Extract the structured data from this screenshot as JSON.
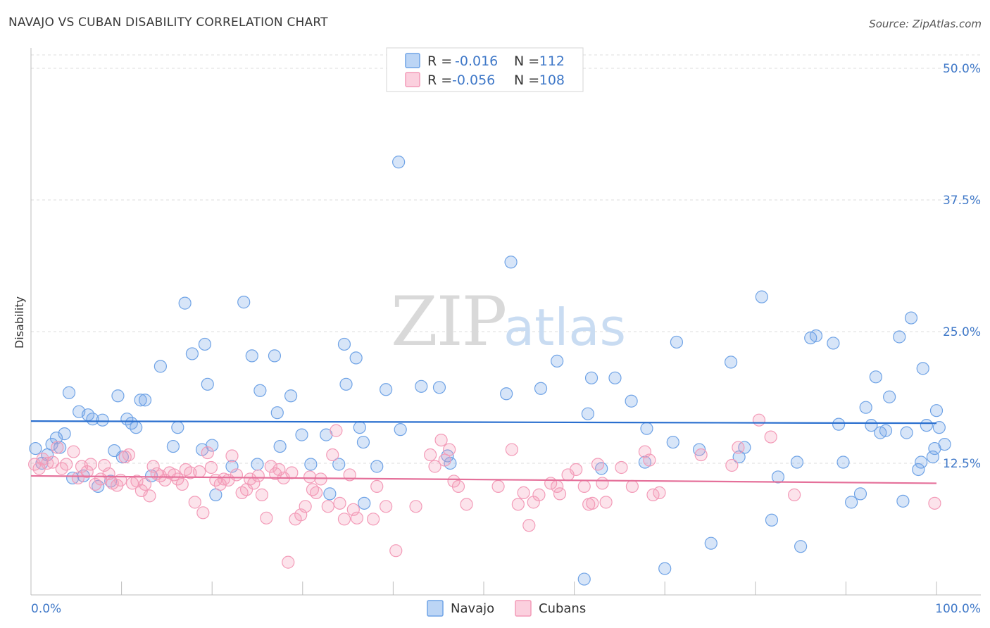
{
  "header": {
    "title": "NAVAJO VS CUBAN DISABILITY CORRELATION CHART",
    "source": "Source: ZipAtlas.com"
  },
  "watermark": {
    "part1": "ZIP",
    "part2": "atlas"
  },
  "legend": {
    "rows": [
      {
        "r_label": "R =",
        "r_value": "-0.016",
        "n_label": "N =",
        "n_value": "112",
        "color": "#6fa3e6"
      },
      {
        "r_label": "R =",
        "r_value": "-0.056",
        "n_label": "N =",
        "n_value": "108",
        "color": "#f39bb8"
      }
    ]
  },
  "bottom_legend": [
    {
      "label": "Navajo",
      "color": "#6fa3e6"
    },
    {
      "label": "Cubans",
      "color": "#f39bb8"
    }
  ],
  "chart_data": {
    "type": "scatter",
    "title": "NAVAJO VS CUBAN DISABILITY CORRELATION CHART",
    "ylabel": "Disability",
    "xlabel": "",
    "xlim": [
      0,
      100
    ],
    "ylim": [
      0,
      50
    ],
    "x_tick_labels": [
      "0.0%",
      "100.0%"
    ],
    "y_ticks": [
      12.5,
      25.0,
      37.5,
      50.0
    ],
    "y_tick_labels": [
      "12.5%",
      "25.0%",
      "37.5%",
      "50.0%"
    ],
    "grid": "horizontal dashed",
    "legend_position": "top-center",
    "series": [
      {
        "name": "Navajo",
        "color": "#6fa3e6",
        "line_color": "#2a6fcf",
        "trend": [
          [
            0,
            16.5
          ],
          [
            100,
            16.3
          ]
        ],
        "points": [
          [
            0.5,
            13.9
          ],
          [
            1.2,
            12.5
          ],
          [
            1.8,
            13.3
          ],
          [
            2.3,
            14.3
          ],
          [
            2.8,
            14.9
          ],
          [
            3.2,
            14.0
          ],
          [
            3.7,
            15.3
          ],
          [
            4.2,
            19.2
          ],
          [
            4.6,
            11.1
          ],
          [
            5.3,
            17.4
          ],
          [
            5.8,
            11.3
          ],
          [
            6.3,
            17.1
          ],
          [
            6.8,
            16.7
          ],
          [
            7.4,
            10.3
          ],
          [
            7.9,
            16.6
          ],
          [
            8.8,
            10.8
          ],
          [
            9.2,
            13.7
          ],
          [
            9.6,
            18.9
          ],
          [
            10.1,
            13.1
          ],
          [
            10.6,
            16.7
          ],
          [
            11.1,
            16.3
          ],
          [
            11.6,
            15.9
          ],
          [
            12.1,
            18.5
          ],
          [
            12.6,
            18.5
          ],
          [
            13.3,
            11.3
          ],
          [
            14.3,
            21.7
          ],
          [
            15.7,
            14.1
          ],
          [
            16.2,
            15.9
          ],
          [
            17.0,
            27.7
          ],
          [
            17.8,
            22.9
          ],
          [
            18.9,
            13.8
          ],
          [
            19.2,
            23.8
          ],
          [
            19.5,
            20.0
          ],
          [
            20.0,
            14.2
          ],
          [
            20.4,
            9.5
          ],
          [
            22.2,
            12.2
          ],
          [
            23.5,
            27.8
          ],
          [
            24.4,
            22.7
          ],
          [
            25.0,
            12.4
          ],
          [
            25.3,
            19.4
          ],
          [
            26.9,
            22.7
          ],
          [
            27.2,
            17.3
          ],
          [
            27.5,
            14.1
          ],
          [
            28.7,
            18.9
          ],
          [
            29.9,
            15.2
          ],
          [
            30.9,
            12.4
          ],
          [
            32.6,
            15.2
          ],
          [
            33.0,
            9.6
          ],
          [
            34.0,
            12.4
          ],
          [
            34.6,
            23.8
          ],
          [
            34.8,
            20.0
          ],
          [
            35.9,
            22.5
          ],
          [
            36.3,
            15.9
          ],
          [
            36.7,
            14.5
          ],
          [
            36.8,
            8.7
          ],
          [
            38.2,
            12.2
          ],
          [
            39.2,
            19.5
          ],
          [
            40.6,
            41.1
          ],
          [
            40.8,
            15.7
          ],
          [
            43.1,
            19.8
          ],
          [
            45.1,
            19.7
          ],
          [
            46.0,
            13.2
          ],
          [
            46.3,
            12.5
          ],
          [
            52.5,
            19.1
          ],
          [
            53.0,
            31.6
          ],
          [
            56.3,
            19.6
          ],
          [
            58.1,
            22.2
          ],
          [
            61.1,
            1.5
          ],
          [
            61.5,
            17.2
          ],
          [
            61.9,
            20.6
          ],
          [
            63.0,
            12.0
          ],
          [
            64.5,
            20.6
          ],
          [
            66.3,
            18.4
          ],
          [
            67.8,
            12.6
          ],
          [
            68.0,
            15.8
          ],
          [
            70.0,
            2.5
          ],
          [
            70.9,
            14.5
          ],
          [
            71.3,
            24.0
          ],
          [
            73.8,
            13.8
          ],
          [
            75.1,
            4.9
          ],
          [
            77.3,
            22.1
          ],
          [
            78.2,
            13.1
          ],
          [
            78.8,
            14.0
          ],
          [
            80.7,
            28.3
          ],
          [
            81.8,
            7.1
          ],
          [
            82.5,
            11.2
          ],
          [
            84.6,
            12.6
          ],
          [
            85.0,
            4.6
          ],
          [
            86.1,
            24.4
          ],
          [
            86.7,
            24.6
          ],
          [
            88.6,
            23.9
          ],
          [
            89.2,
            16.2
          ],
          [
            89.7,
            12.6
          ],
          [
            90.6,
            8.8
          ],
          [
            91.6,
            9.6
          ],
          [
            92.2,
            17.8
          ],
          [
            92.8,
            16.1
          ],
          [
            93.3,
            20.7
          ],
          [
            93.8,
            15.4
          ],
          [
            94.4,
            15.6
          ],
          [
            94.8,
            18.8
          ],
          [
            95.9,
            24.5
          ],
          [
            96.3,
            8.9
          ],
          [
            96.7,
            15.4
          ],
          [
            97.2,
            26.3
          ],
          [
            98.0,
            11.9
          ],
          [
            98.3,
            12.6
          ],
          [
            98.5,
            21.5
          ],
          [
            98.9,
            16.1
          ],
          [
            99.6,
            13.1
          ],
          [
            99.8,
            13.9
          ],
          [
            100.0,
            17.5
          ],
          [
            100.3,
            15.9
          ],
          [
            100.9,
            14.3
          ]
        ]
      },
      {
        "name": "Cubans",
        "color": "#f39bb8",
        "line_color": "#e5709a",
        "trend": [
          [
            0,
            11.3
          ],
          [
            100,
            10.6
          ]
        ],
        "points": [
          [
            0.4,
            12.4
          ],
          [
            0.9,
            12.0
          ],
          [
            1.3,
            12.9
          ],
          [
            1.8,
            12.5
          ],
          [
            2.4,
            12.6
          ],
          [
            2.9,
            14.0
          ],
          [
            3.4,
            12.0
          ],
          [
            3.9,
            12.4
          ],
          [
            4.7,
            13.6
          ],
          [
            5.2,
            11.1
          ],
          [
            5.6,
            12.2
          ],
          [
            6.2,
            11.7
          ],
          [
            6.6,
            12.4
          ],
          [
            7.1,
            10.5
          ],
          [
            7.7,
            11.0
          ],
          [
            8.1,
            12.3
          ],
          [
            8.6,
            11.5
          ],
          [
            9.0,
            10.6
          ],
          [
            9.5,
            10.4
          ],
          [
            9.9,
            10.9
          ],
          [
            10.4,
            13.1
          ],
          [
            10.8,
            13.3
          ],
          [
            11.2,
            10.6
          ],
          [
            11.7,
            10.8
          ],
          [
            12.2,
            9.9
          ],
          [
            12.6,
            10.5
          ],
          [
            13.1,
            9.4
          ],
          [
            13.5,
            12.2
          ],
          [
            13.9,
            11.5
          ],
          [
            14.3,
            11.3
          ],
          [
            14.8,
            10.9
          ],
          [
            15.3,
            11.6
          ],
          [
            15.8,
            11.4
          ],
          [
            16.2,
            11.0
          ],
          [
            16.7,
            10.5
          ],
          [
            17.1,
            11.9
          ],
          [
            17.6,
            11.6
          ],
          [
            18.1,
            8.8
          ],
          [
            18.6,
            11.7
          ],
          [
            19.0,
            7.8
          ],
          [
            19.5,
            13.5
          ],
          [
            19.9,
            12.1
          ],
          [
            20.4,
            10.9
          ],
          [
            20.9,
            10.5
          ],
          [
            21.3,
            11.0
          ],
          [
            21.8,
            10.9
          ],
          [
            22.2,
            13.2
          ],
          [
            22.7,
            11.4
          ],
          [
            23.3,
            9.7
          ],
          [
            23.8,
            10.0
          ],
          [
            24.2,
            11.0
          ],
          [
            24.6,
            10.6
          ],
          [
            25.1,
            11.3
          ],
          [
            25.5,
            9.5
          ],
          [
            26.0,
            7.3
          ],
          [
            26.5,
            12.2
          ],
          [
            27.0,
            11.5
          ],
          [
            27.4,
            11.9
          ],
          [
            27.9,
            11.1
          ],
          [
            28.4,
            3.1
          ],
          [
            28.8,
            11.6
          ],
          [
            29.2,
            7.2
          ],
          [
            29.8,
            7.6
          ],
          [
            30.3,
            8.4
          ],
          [
            30.8,
            11.2
          ],
          [
            31.1,
            10.0
          ],
          [
            31.5,
            9.7
          ],
          [
            32.0,
            11.0
          ],
          [
            32.8,
            8.4
          ],
          [
            33.3,
            13.3
          ],
          [
            33.7,
            15.6
          ],
          [
            34.1,
            8.7
          ],
          [
            34.6,
            7.2
          ],
          [
            35.2,
            11.4
          ],
          [
            35.6,
            8.1
          ],
          [
            36.0,
            7.3
          ],
          [
            37.8,
            7.2
          ],
          [
            38.2,
            10.3
          ],
          [
            39.2,
            8.4
          ],
          [
            40.3,
            4.2
          ],
          [
            42.5,
            8.4
          ],
          [
            44.1,
            13.3
          ],
          [
            44.6,
            12.2
          ],
          [
            45.3,
            14.7
          ],
          [
            45.7,
            12.8
          ],
          [
            46.2,
            13.8
          ],
          [
            46.7,
            10.8
          ],
          [
            47.2,
            10.3
          ],
          [
            48.1,
            8.6
          ],
          [
            51.6,
            10.3
          ],
          [
            53.1,
            13.8
          ],
          [
            53.8,
            8.6
          ],
          [
            54.4,
            9.7
          ],
          [
            55.0,
            6.6
          ],
          [
            55.5,
            8.8
          ],
          [
            56.1,
            9.5
          ],
          [
            57.4,
            10.6
          ],
          [
            58.1,
            10.3
          ],
          [
            58.4,
            9.6
          ],
          [
            59.3,
            11.4
          ],
          [
            60.2,
            11.9
          ],
          [
            61.1,
            10.3
          ],
          [
            61.6,
            8.6
          ],
          [
            62.0,
            8.7
          ],
          [
            62.6,
            12.4
          ],
          [
            63.1,
            10.6
          ],
          [
            63.5,
            8.8
          ],
          [
            65.2,
            12.1
          ],
          [
            66.4,
            10.3
          ],
          [
            67.8,
            13.6
          ],
          [
            68.3,
            12.8
          ],
          [
            68.7,
            9.5
          ],
          [
            69.4,
            9.7
          ],
          [
            74.0,
            13.3
          ],
          [
            77.4,
            12.3
          ],
          [
            78.1,
            14.0
          ],
          [
            80.4,
            16.6
          ],
          [
            81.7,
            15.0
          ],
          [
            84.3,
            9.5
          ],
          [
            99.8,
            8.7
          ]
        ]
      }
    ]
  }
}
